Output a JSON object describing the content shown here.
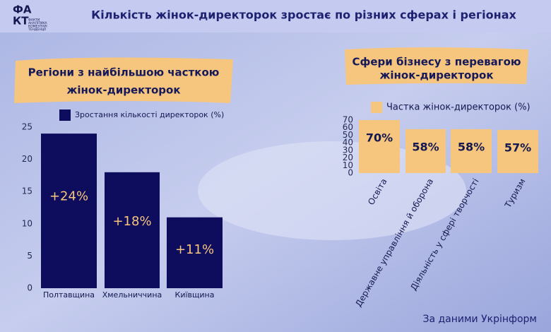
{
  "header": {
    "title": "Кількість жінок-директорок зростає по різних сферах і регіонах",
    "logo_top": "ФА",
    "logo_bottom": "КТ",
    "logo_lines": [
      "ФАКТИ",
      "АНАЛІТИКА",
      "КОМЕНТАРІ",
      "ТЕНДЕНЦІЇ"
    ]
  },
  "chart_data": [
    {
      "type": "bar",
      "title": [
        "Регіони з найбільшою часткою",
        "жінок-директорок"
      ],
      "legend": "Зростання кількості директорок (%)",
      "categories": [
        "Полтавщина",
        "Хмельниччина",
        "Київщина"
      ],
      "values": [
        24,
        18,
        11
      ],
      "value_labels": [
        "+24%",
        "+18%",
        "+11%"
      ],
      "color": "#0e0c5c",
      "ylim": [
        0,
        25
      ],
      "yticks": [
        0,
        5,
        10,
        15,
        20,
        25
      ]
    },
    {
      "type": "bar",
      "title": [
        "Сфери бізнесу з перевагою",
        "жінок-директорок"
      ],
      "legend": "Частка жінок-директорок (%)",
      "categories": [
        "Освіта",
        "Державне управління й оборона",
        "Діяльність у сфері творчості",
        "Туризм"
      ],
      "values": [
        70,
        58,
        58,
        57
      ],
      "value_labels": [
        "70%",
        "58%",
        "58%",
        "57%"
      ],
      "color": "#f6c57e",
      "ylim": [
        0,
        70
      ],
      "yticks": [
        0,
        10,
        20,
        30,
        40,
        50,
        60,
        70
      ]
    }
  ],
  "source": "За даними Укрінформ"
}
